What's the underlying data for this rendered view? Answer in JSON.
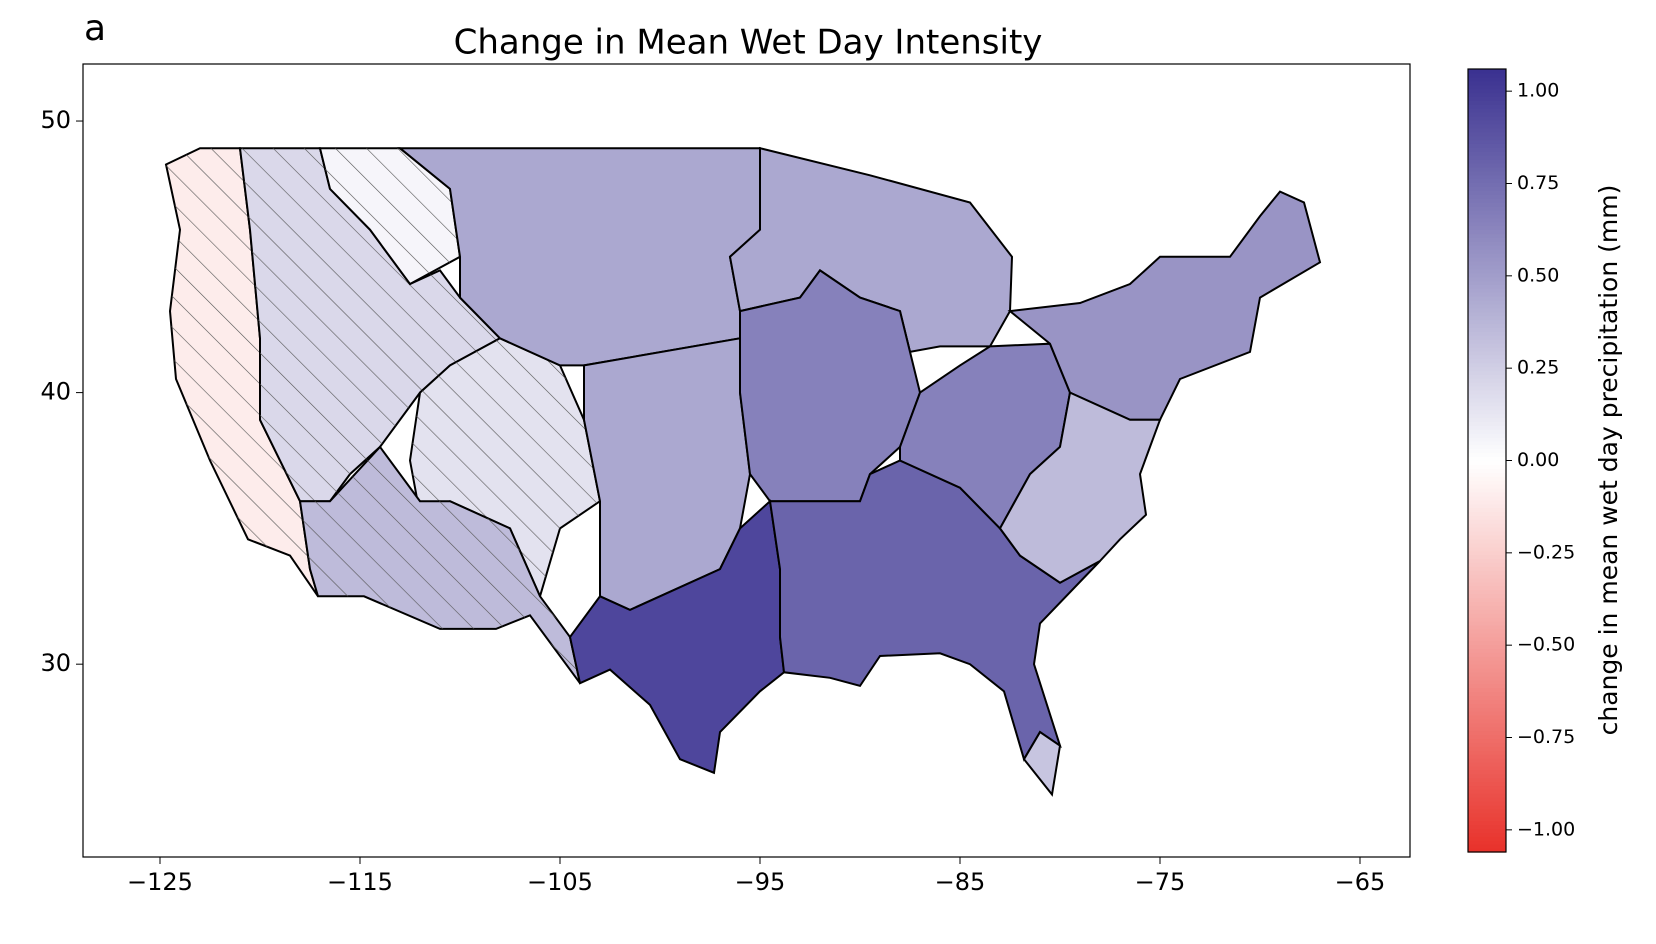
{
  "chart_data": {
    "type": "map",
    "panel_label": "a",
    "title": "Change in Mean Wet Day Intensity",
    "xlim": [
      -128.85,
      -62.5
    ],
    "ylim": [
      22.9,
      52.1
    ],
    "xticks": [
      {
        "value": -125,
        "label": "−125"
      },
      {
        "value": -115,
        "label": "−115"
      },
      {
        "value": -105,
        "label": "−105"
      },
      {
        "value": -95,
        "label": "−95"
      },
      {
        "value": -85,
        "label": "−85"
      },
      {
        "value": -75,
        "label": "−75"
      },
      {
        "value": -65,
        "label": "−65"
      }
    ],
    "yticks": [
      30,
      40,
      50
    ],
    "colorbar": {
      "label": "change in mean wet day precipitation (mm)",
      "lim": [
        -1.06,
        1.06
      ],
      "colors": [
        "#e8312a",
        "#ffffff",
        "#3a3190"
      ],
      "ticks": [
        {
          "value": 1,
          "label": "1.00"
        },
        {
          "value": 0.75,
          "label": "0.75"
        },
        {
          "value": 0.5,
          "label": "0.50"
        },
        {
          "value": 0.25,
          "label": "0.25"
        },
        {
          "value": 0,
          "label": "0.00"
        },
        {
          "value": -0.25,
          "label": "−0.25"
        },
        {
          "value": -0.5,
          "label": "−0.50"
        },
        {
          "value": -0.75,
          "label": "−0.75"
        },
        {
          "value": -1,
          "label": "−1.00"
        }
      ]
    },
    "regions": [
      {
        "value": -0.1,
        "hatched": true
      },
      {
        "value": 0.2,
        "hatched": true
      },
      {
        "value": 0.05,
        "hatched": true
      },
      {
        "value": 0.15,
        "hatched": true
      },
      {
        "value": 0.35,
        "hatched": true
      },
      {
        "value": 0.45,
        "hatched": false
      },
      {
        "value": 0.45,
        "hatched": false
      },
      {
        "value": 0.45,
        "hatched": false
      },
      {
        "value": 0.65,
        "hatched": false
      },
      {
        "value": 0.95,
        "hatched": false
      },
      {
        "value": 0.8,
        "hatched": false
      },
      {
        "value": 0.65,
        "hatched": false
      },
      {
        "value": 0.55,
        "hatched": false
      },
      {
        "value": 0.35,
        "hatched": false
      },
      {
        "value": 0.3,
        "hatched": false
      }
    ]
  }
}
